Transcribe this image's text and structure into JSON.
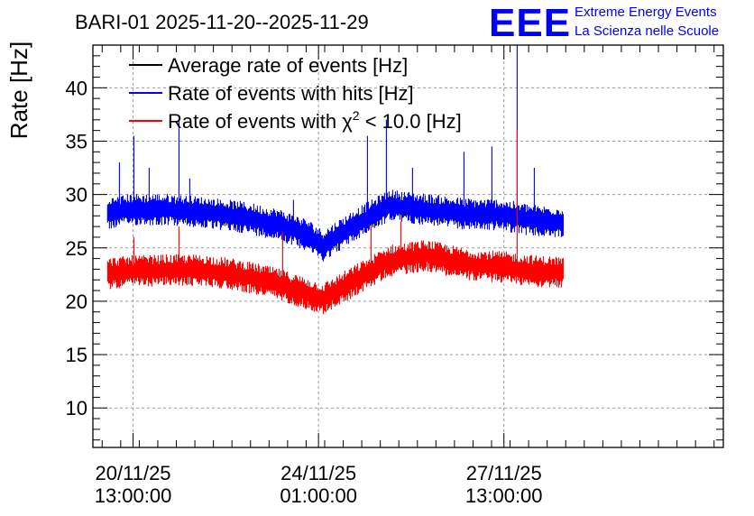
{
  "chart_data": {
    "type": "line",
    "title": "BARI-01 2025-11-20--2025-11-29",
    "ylabel": "Rate [Hz]",
    "xlabel": "",
    "ylim": [
      6.3,
      44
    ],
    "yticks": [
      10,
      15,
      20,
      25,
      30,
      35,
      40
    ],
    "xlim": [
      0,
      8.5
    ],
    "x_unit": "days since 2025-11-20 00:00",
    "xticks": [
      {
        "x": 0.5417,
        "line1": "20/11/25",
        "line2": "13:00:00"
      },
      {
        "x": 3.0417,
        "line1": "24/11/25",
        "line2": "01:00:00"
      },
      {
        "x": 5.5417,
        "line1": "27/11/25",
        "line2": "13:00:00"
      }
    ],
    "grid": true,
    "legend_position": "top-left",
    "series": [
      {
        "name": "Average rate of events [Hz]",
        "color": "#000000",
        "x": [
          0.2,
          0.5,
          1.0,
          1.5,
          2.0,
          2.5,
          2.9,
          3.1,
          3.5,
          4.0,
          4.5,
          5.0,
          5.5,
          6.0,
          6.35
        ],
        "values": [
          28.2,
          28.6,
          28.6,
          28.3,
          27.9,
          27.2,
          26.2,
          25.2,
          27.0,
          29.0,
          28.6,
          28.2,
          28.1,
          27.5,
          27.4
        ]
      },
      {
        "name": "Rate of events with hits [Hz]",
        "color": "#0000ff",
        "x": [
          0.2,
          0.5,
          1.0,
          1.5,
          2.0,
          2.5,
          2.9,
          3.1,
          3.5,
          4.0,
          4.5,
          5.0,
          5.5,
          6.0,
          6.35
        ],
        "values": [
          28.2,
          28.6,
          28.6,
          28.3,
          27.9,
          27.2,
          26.2,
          25.2,
          27.0,
          29.0,
          28.6,
          28.2,
          28.1,
          27.5,
          27.4
        ],
        "spikes": [
          {
            "x": 0.35,
            "y": 33.0
          },
          {
            "x": 0.55,
            "y": 35.5
          },
          {
            "x": 0.75,
            "y": 32.5
          },
          {
            "x": 1.15,
            "y": 37.0
          },
          {
            "x": 1.3,
            "y": 31.5
          },
          {
            "x": 2.7,
            "y": 29.5
          },
          {
            "x": 3.7,
            "y": 35.5
          },
          {
            "x": 3.95,
            "y": 37.0
          },
          {
            "x": 4.3,
            "y": 32.5
          },
          {
            "x": 5.0,
            "y": 34.0
          },
          {
            "x": 5.38,
            "y": 34.5
          },
          {
            "x": 5.95,
            "y": 32.5
          },
          {
            "x": 5.72,
            "y": 44.0
          }
        ]
      },
      {
        "name": "Rate of events with χ² < 10.0 [Hz]",
        "color": "#ff0000",
        "x": [
          0.2,
          0.5,
          1.0,
          1.5,
          2.0,
          2.5,
          2.9,
          3.1,
          3.5,
          4.0,
          4.5,
          5.0,
          5.5,
          6.0,
          6.35
        ],
        "values": [
          22.6,
          22.8,
          22.9,
          22.9,
          22.4,
          21.6,
          20.7,
          20.2,
          21.8,
          23.8,
          24.3,
          23.5,
          23.2,
          22.8,
          22.7
        ],
        "spikes": [
          {
            "x": 0.55,
            "y": 26.0
          },
          {
            "x": 1.15,
            "y": 27.0
          },
          {
            "x": 2.55,
            "y": 26.5
          },
          {
            "x": 3.75,
            "y": 27.0
          },
          {
            "x": 4.15,
            "y": 27.5
          },
          {
            "x": 5.72,
            "y": 36.0
          }
        ]
      }
    ]
  },
  "logo": {
    "mark": "EEE",
    "line1": "Extreme Energy Events",
    "line2": "La Scienza nelle Scuole"
  },
  "legend": {
    "chi_prefix": "Rate of events with ",
    "chi_symbol": "χ",
    "chi_exp": "2",
    "chi_suffix": " < 10.0 [Hz]"
  }
}
